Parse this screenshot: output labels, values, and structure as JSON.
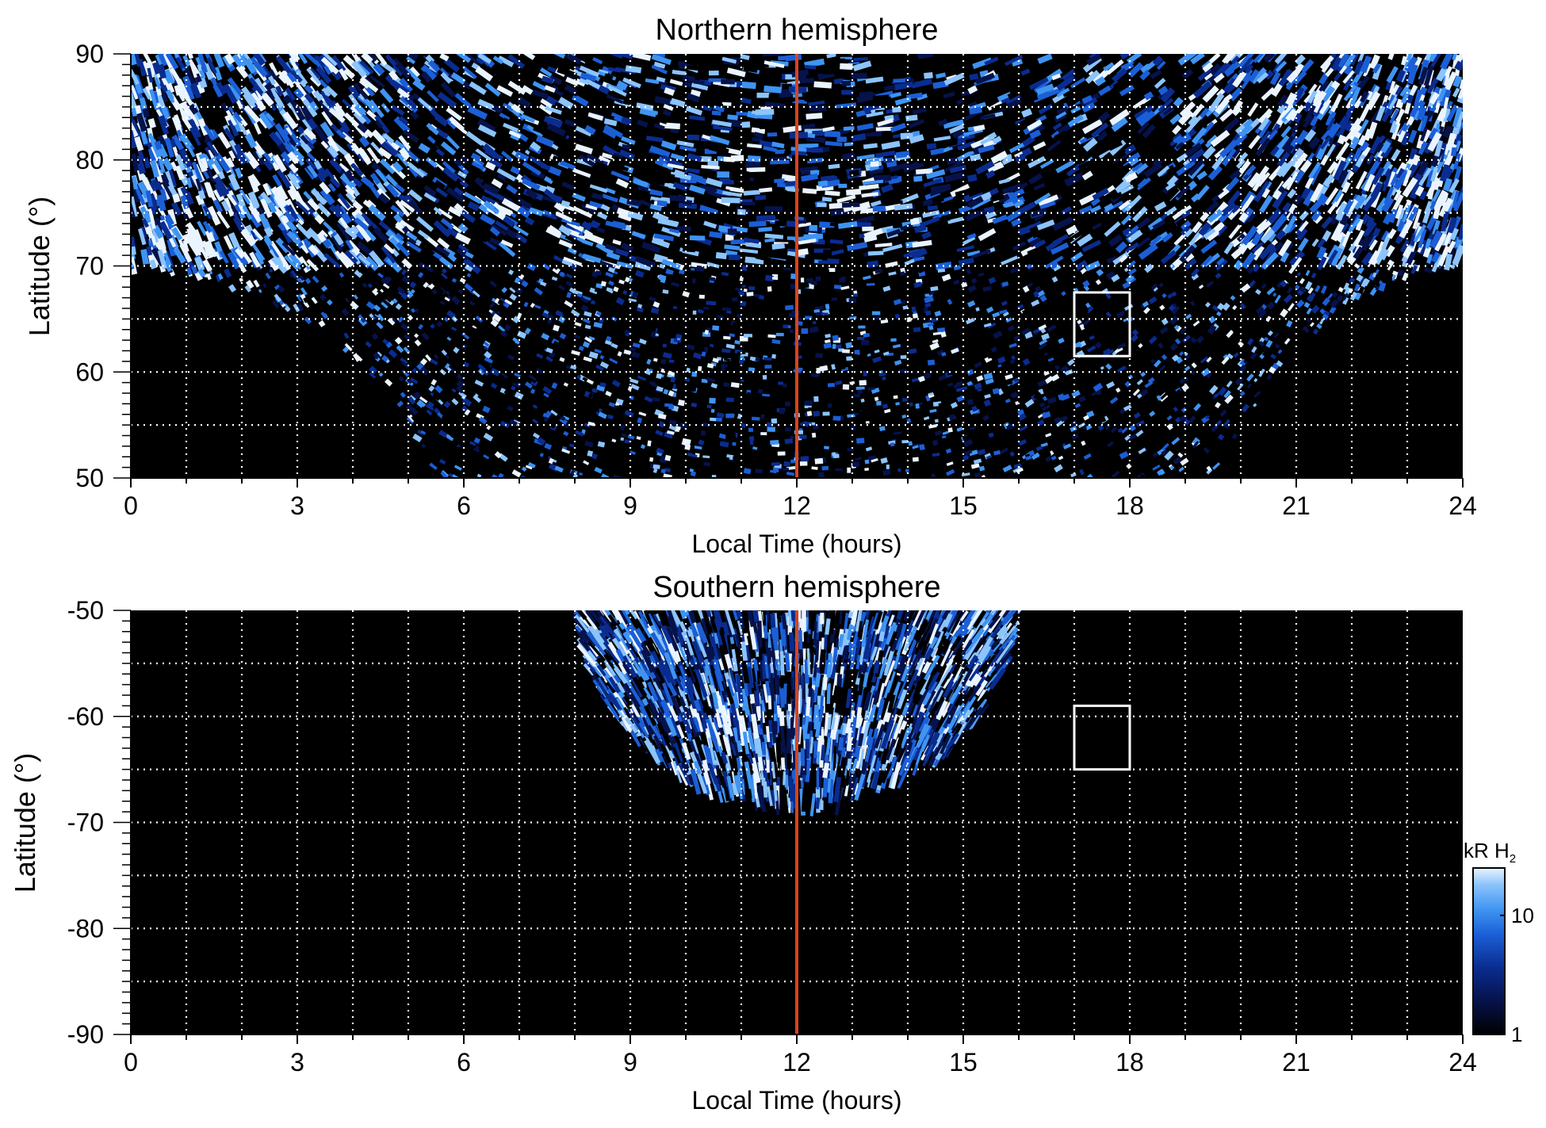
{
  "chart_data": [
    {
      "type": "heatmap",
      "id": "north",
      "title": "Northern hemisphere",
      "xlabel": "Local Time (hours)",
      "ylabel": "Latitude (°)",
      "xlim": [
        0,
        24
      ],
      "ylim": [
        50,
        90
      ],
      "xticks": [
        0,
        3,
        6,
        9,
        12,
        15,
        18,
        21,
        24
      ],
      "yticks": [
        50,
        60,
        70,
        80,
        90
      ],
      "grid": true,
      "grid_x_step_hours": 1,
      "grid_y_step_deg": 5,
      "noon_line_local_time": 12,
      "noon_line_color": "#d8431c",
      "highlight_box": {
        "local_time": [
          17,
          18
        ],
        "latitude": [
          61.5,
          67.5
        ]
      },
      "coverage_boundary_latitude": [
        {
          "local_time": 0,
          "latitude": 69.5
        },
        {
          "local_time": 1,
          "latitude": 69.0
        },
        {
          "local_time": 2,
          "latitude": 67.5
        },
        {
          "local_time": 3,
          "latitude": 65.5
        },
        {
          "local_time": 4,
          "latitude": 61.5
        },
        {
          "local_time": 5,
          "latitude": 55.5
        },
        {
          "local_time": 5.4,
          "latitude": 50.0
        },
        {
          "local_time": 19.5,
          "latitude": 50.0
        },
        {
          "local_time": 20,
          "latitude": 55.0
        },
        {
          "local_time": 21,
          "latitude": 62.0
        },
        {
          "local_time": 22,
          "latitude": 66.5
        },
        {
          "local_time": 23,
          "latitude": 69.0
        },
        {
          "local_time": 24,
          "latitude": 70.0
        }
      ],
      "bright_features": [
        {
          "local_time": 3.0,
          "latitude": 77.0,
          "intensity_kR": 20
        },
        {
          "local_time": 6.5,
          "latitude": 74.8,
          "intensity_kR": 25
        },
        {
          "local_time": 1.5,
          "latitude": 72.0,
          "intensity_kR": 15
        },
        {
          "local_time": 8.0,
          "latitude": 74.0,
          "intensity_kR": 15
        }
      ]
    },
    {
      "type": "heatmap",
      "id": "south",
      "title": "Southern hemisphere",
      "xlabel": "Local Time (hours)",
      "ylabel": "Latitude (°)",
      "xlim": [
        0,
        24
      ],
      "ylim": [
        -90,
        -50
      ],
      "xticks": [
        0,
        3,
        6,
        9,
        12,
        15,
        18,
        21,
        24
      ],
      "yticks": [
        -50,
        -60,
        -70,
        -80,
        -90
      ],
      "grid": true,
      "grid_x_step_hours": 1,
      "grid_y_step_deg": 5,
      "noon_line_local_time": 12,
      "noon_line_color": "#d8431c",
      "highlight_box": {
        "local_time": [
          17,
          18
        ],
        "latitude": [
          -65,
          -59
        ]
      },
      "coverage_region": {
        "center_local_time": 12,
        "half_width_hours": 3.9,
        "min_latitude": -68.5
      },
      "bright_features": [
        {
          "local_time": 11.0,
          "latitude": -60.0,
          "intensity_kR": 12
        },
        {
          "local_time": 13.0,
          "latitude": -61.0,
          "intensity_kR": 12
        }
      ]
    }
  ],
  "colorbar": {
    "label_main": "kR H",
    "label_sub": "2",
    "scale": "log",
    "range": [
      1,
      25
    ],
    "ticks": [
      "10",
      "1"
    ],
    "tick_values": [
      10,
      1
    ],
    "colors": [
      "#000000",
      "#06124a",
      "#0a2c8f",
      "#1b5fd6",
      "#3f94f2",
      "#8cc4fb",
      "#eaf4ff"
    ]
  }
}
